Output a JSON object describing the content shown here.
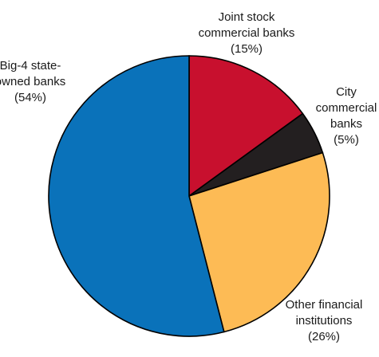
{
  "chart_data": {
    "type": "pie",
    "title": "",
    "start_angle_deg": 0,
    "direction": "clockwise",
    "slices": [
      {
        "label_lines": [
          "Joint stock",
          "commercial banks",
          "(15%)"
        ],
        "value": 15,
        "color": "#c8102e"
      },
      {
        "label_lines": [
          "City",
          "commercial",
          "banks",
          "(5%)"
        ],
        "value": 5,
        "color": "#231f20"
      },
      {
        "label_lines": [
          "Other financial",
          "institutions",
          "(26%)"
        ],
        "value": 26,
        "color": "#fdbb55"
      },
      {
        "label_lines": [
          "Big-4 state-",
          "owned banks",
          "(54%)"
        ],
        "value": 54,
        "color": "#0a72ba"
      }
    ]
  }
}
